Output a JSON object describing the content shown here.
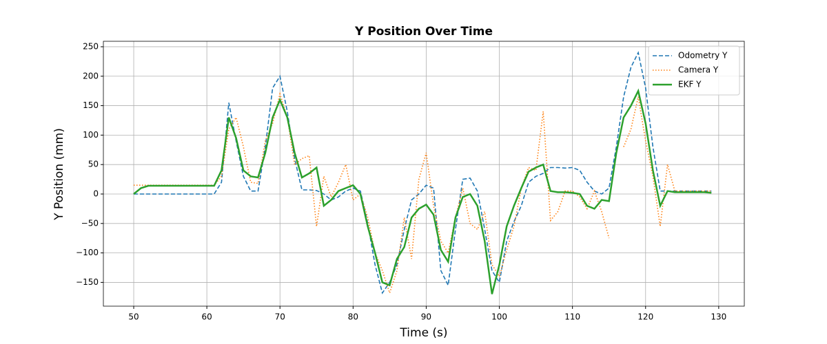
{
  "chart_data": {
    "type": "line",
    "title": "Y Position Over Time",
    "x_label": "Time (s)",
    "y_label": "Y Position (mm)",
    "x": [
      50,
      51,
      52,
      53,
      54,
      55,
      56,
      57,
      58,
      59,
      60,
      61,
      62,
      63,
      64,
      65,
      66,
      67,
      68,
      69,
      70,
      71,
      72,
      73,
      74,
      75,
      76,
      77,
      78,
      79,
      80,
      81,
      82,
      83,
      84,
      85,
      86,
      87,
      88,
      89,
      90,
      91,
      92,
      93,
      94,
      95,
      96,
      97,
      98,
      99,
      100,
      101,
      102,
      103,
      104,
      105,
      106,
      107,
      108,
      109,
      110,
      111,
      112,
      113,
      114,
      115,
      116,
      117,
      118,
      119,
      120,
      121,
      122,
      123,
      124,
      125,
      126,
      127,
      128,
      129
    ],
    "series": [
      {
        "name": "Odometry Y",
        "color": "#1f77b4",
        "linestyle": "dashed",
        "values": [
          0,
          0,
          0,
          0,
          0,
          0,
          0,
          0,
          0,
          0,
          0,
          0,
          20,
          155,
          90,
          30,
          5,
          5,
          80,
          180,
          200,
          140,
          60,
          7,
          7,
          6,
          0,
          -10,
          -5,
          5,
          10,
          5,
          -50,
          -120,
          -168,
          -150,
          -120,
          -60,
          -10,
          0,
          15,
          10,
          -130,
          -155,
          -60,
          25,
          27,
          5,
          -60,
          -130,
          -150,
          -80,
          -47,
          -20,
          20,
          30,
          35,
          45,
          45,
          44,
          45,
          40,
          20,
          5,
          0,
          10,
          80,
          165,
          215,
          240,
          180,
          80,
          5,
          5,
          5,
          5,
          5,
          5,
          5,
          5
        ]
      },
      {
        "name": "Camera Y",
        "color": "#ff7f0e",
        "linestyle": "dotted",
        "values": [
          15,
          15,
          15,
          15,
          15,
          15,
          15,
          15,
          15,
          15,
          15,
          15,
          30,
          110,
          130,
          80,
          20,
          18,
          90,
          120,
          170,
          130,
          50,
          60,
          65,
          -55,
          30,
          -5,
          20,
          50,
          -10,
          0,
          -40,
          -100,
          -130,
          -168,
          -130,
          -40,
          -110,
          25,
          70,
          -20,
          -80,
          -100,
          -40,
          10,
          -50,
          -60,
          -30,
          -120,
          -140,
          -95,
          -55,
          10,
          45,
          40,
          140,
          -45,
          -30,
          5,
          5,
          -5,
          -25,
          5,
          -30,
          -75,
          null,
          80,
          110,
          165,
          90,
          30,
          -55,
          50,
          5,
          5,
          5,
          5,
          5,
          5
        ]
      },
      {
        "name": "EKF Y",
        "color": "#2ca02c",
        "linestyle": "solid",
        "values": [
          0,
          10,
          14,
          14,
          14,
          14,
          14,
          14,
          14,
          14,
          14,
          14,
          40,
          130,
          95,
          40,
          30,
          28,
          70,
          130,
          160,
          130,
          70,
          28,
          35,
          45,
          -20,
          -10,
          5,
          10,
          15,
          0,
          -55,
          -100,
          -150,
          -155,
          -110,
          -90,
          -40,
          -25,
          -18,
          -35,
          -95,
          -115,
          -40,
          -5,
          0,
          -20,
          -80,
          -170,
          -120,
          -55,
          -20,
          10,
          38,
          45,
          50,
          5,
          3,
          3,
          2,
          0,
          -20,
          -25,
          -10,
          -12,
          70,
          130,
          150,
          175,
          120,
          40,
          -20,
          5,
          3,
          3,
          3,
          3,
          3,
          2
        ]
      }
    ],
    "xlim": [
      45.85,
      133.5
    ],
    "ylim": [
      -190.4,
      259.3
    ],
    "xticks": [
      50,
      60,
      70,
      80,
      90,
      100,
      110,
      120,
      130
    ],
    "yticks": [
      {
        "value": -150,
        "label": "−150"
      },
      {
        "value": -100,
        "label": "−100"
      },
      {
        "value": -50,
        "label": "−50"
      },
      0,
      50,
      100,
      150,
      200,
      250
    ],
    "grid": true,
    "legend": "upper right"
  }
}
